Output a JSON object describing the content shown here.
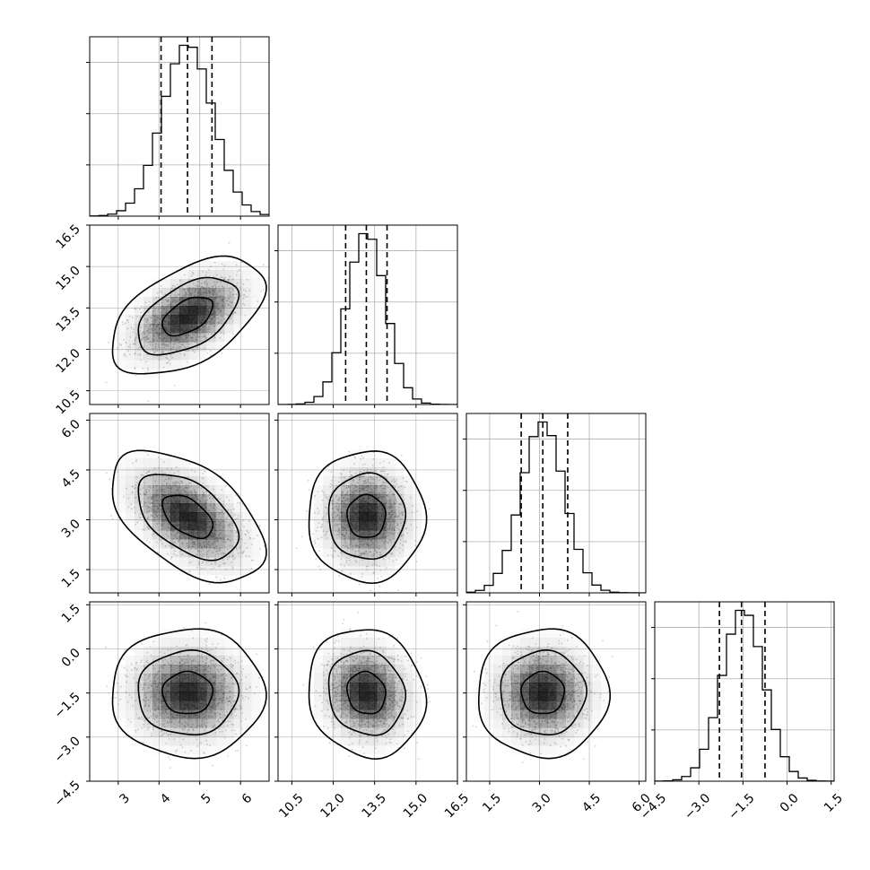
{
  "chart_data": {
    "type": "corner",
    "grid": true,
    "colors": {
      "line": "#000000",
      "grid": "#b0b0b0",
      "points": "#9a9a9a",
      "density": "#000000"
    },
    "parameters": [
      {
        "center": 4.7,
        "sd": 0.62,
        "range": [
          2.3,
          6.7
        ],
        "ticks": [
          3,
          4,
          5,
          6
        ],
        "tick_labels": [
          "3",
          "4",
          "5",
          "6"
        ],
        "quantiles": [
          4.05,
          4.7,
          5.3
        ]
      },
      {
        "center": 13.2,
        "sd": 0.7,
        "range": [
          10.0,
          16.5
        ],
        "ticks": [
          10.5,
          12.0,
          13.5,
          15.0,
          16.5
        ],
        "tick_labels": [
          "10.5",
          "12.0",
          "13.5",
          "15.0",
          "16.5"
        ],
        "quantiles": [
          12.45,
          13.2,
          13.95
        ]
      },
      {
        "center": 3.1,
        "sd": 0.65,
        "range": [
          0.8,
          6.2
        ],
        "ticks": [
          1.5,
          3.0,
          4.5,
          6.0
        ],
        "tick_labels": [
          "1.5",
          "3.0",
          "4.5",
          "6.0"
        ],
        "quantiles": [
          2.45,
          3.1,
          3.85
        ]
      },
      {
        "center": -1.5,
        "sd": 0.72,
        "range": [
          -4.5,
          1.6
        ],
        "ticks": [
          -4.5,
          -3.0,
          -1.5,
          0.0,
          1.5
        ],
        "tick_labels": [
          "−4.5",
          "−3.0",
          "−1.5",
          "0.0",
          "1.5"
        ],
        "quantiles": [
          -2.3,
          -1.55,
          -0.75
        ]
      }
    ],
    "correlations": {
      "1-0": 0.5,
      "2-0": -0.5,
      "2-1": 0.0,
      "3-0": 0.0,
      "3-1": -0.1,
      "3-2": 0.0
    },
    "histogram_bins": 20,
    "contour_levels": [
      0.39,
      0.86,
      0.99
    ]
  }
}
